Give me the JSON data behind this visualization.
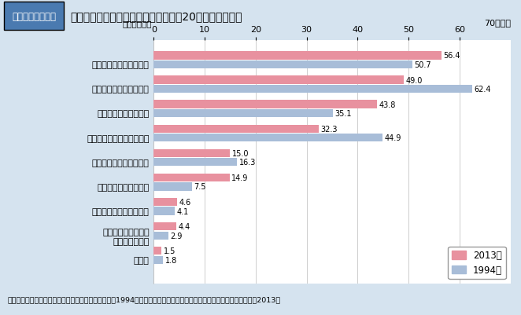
{
  "title_badge": "図表２－２－３９",
  "title_text": "運動・スポーツを行った理由の変化（20年前との比較）",
  "subtitle": "（複数回答）",
  "categories": [
    "健康・体力つくりのため",
    "楽しみ、気晴らしとして",
    "運動不足を感じるから",
    "友人・仲間との交流として",
    "家族とのふれあいとして",
    "美容や肥満解消のため",
    "精神の修養や訓練のため",
    "自己の記録や能力を\n向上させるため",
    "その他"
  ],
  "values_2013": [
    56.4,
    49.0,
    43.8,
    32.3,
    15.0,
    14.9,
    4.6,
    4.4,
    1.5
  ],
  "values_1994": [
    50.7,
    62.4,
    35.1,
    44.9,
    16.3,
    7.5,
    4.1,
    2.9,
    1.8
  ],
  "color_2013": "#E8919F",
  "color_1994": "#A8BDD8",
  "xlim": [
    0,
    70
  ],
  "xticks": [
    0,
    10,
    20,
    30,
    40,
    50,
    60
  ],
  "xlabel_text": "70（％）",
  "legend_2013": "2013年",
  "legend_1994": "1994年",
  "footer": "資料：総理府「体力・スポーツに関する世論調査」（1994）　及び文部科学省「体力・スポーツに関する世論調査」（2013）",
  "bg_color": "#D5E3EF",
  "plot_bg_color": "#FFFFFF",
  "badge_bg": "#4A7AB0",
  "badge_text_color": "#FFFFFF"
}
